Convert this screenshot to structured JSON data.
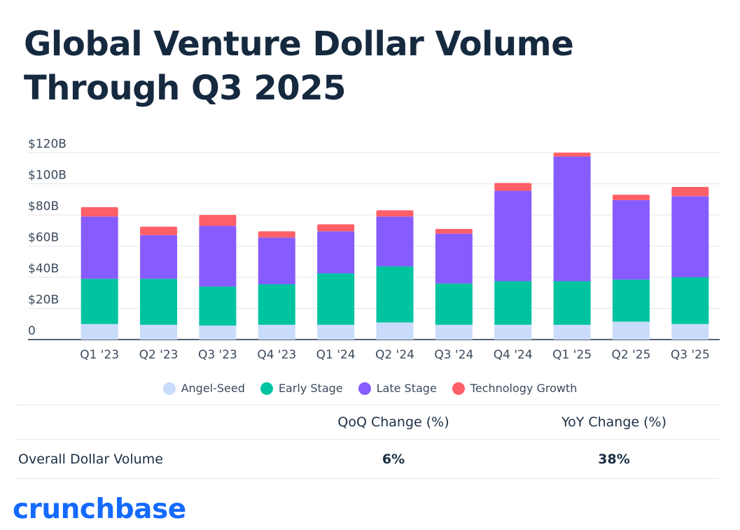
{
  "title": "Global Venture Dollar Volume Through Q3 2025",
  "colors": {
    "angel_seed": "#c9dcfb",
    "early_stage": "#00c3a0",
    "late_stage": "#875cff",
    "technology_growth": "#ff5f67"
  },
  "chart_data": {
    "type": "bar",
    "stacked": true,
    "categories": [
      "Q1 '23",
      "Q2 '23",
      "Q3 '23",
      "Q4 '23",
      "Q1 '24",
      "Q2 '24",
      "Q3 '24",
      "Q4 '24",
      "Q1 '25",
      "Q2 '25",
      "Q3 '25"
    ],
    "series": [
      {
        "name": "Angel-Seed",
        "color": "#c9dcfb",
        "values": [
          10,
          9.5,
          9,
          9.5,
          9.5,
          11,
          9.5,
          9.5,
          9.5,
          11.5,
          10
        ]
      },
      {
        "name": "Early Stage",
        "color": "#00c3a0",
        "values": [
          29,
          29.5,
          25,
          26,
          33,
          36,
          26.5,
          28,
          28,
          27,
          30
        ]
      },
      {
        "name": "Late Stage",
        "color": "#875cff",
        "values": [
          40,
          28,
          39,
          30,
          27,
          32,
          32,
          58,
          80,
          51,
          52
        ]
      },
      {
        "name": "Technology Growth",
        "color": "#ff5f67",
        "values": [
          6,
          5.5,
          7,
          4,
          4.5,
          4,
          3,
          5,
          2.5,
          3.5,
          6
        ]
      }
    ],
    "y_ticks": [
      "0",
      "$20B",
      "$40B",
      "$60B",
      "$80B",
      "$100B",
      "$120B"
    ],
    "ylim": [
      0,
      120
    ],
    "grid": true,
    "legend_position": "bottom"
  },
  "table": {
    "headers": [
      "",
      "QoQ Change (%)",
      "YoY Change (%)"
    ],
    "row_label": "Overall Dollar Volume",
    "qoq": "6%",
    "yoy": "38%"
  },
  "brand": "crunchbase"
}
